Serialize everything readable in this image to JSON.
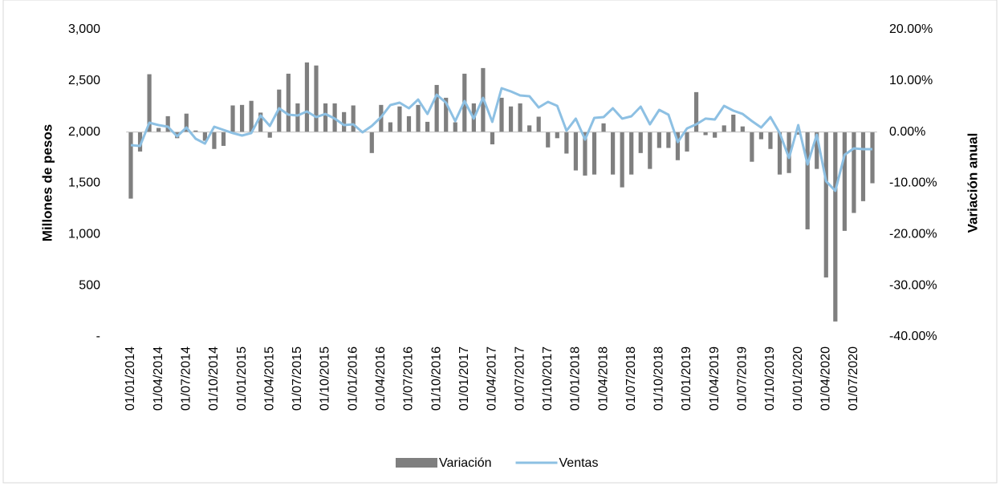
{
  "chart_data": {
    "type": "bar-line",
    "categories": [
      "01/01/2014",
      null,
      null,
      "01/04/2014",
      null,
      null,
      "01/07/2014",
      null,
      null,
      "01/10/2014",
      null,
      null,
      "01/01/2015",
      null,
      null,
      "01/04/2015",
      null,
      null,
      "01/07/2015",
      null,
      null,
      "01/10/2015",
      null,
      null,
      "01/01/2016",
      null,
      null,
      "01/04/2016",
      null,
      null,
      "01/07/2016",
      null,
      null,
      "01/10/2016",
      null,
      null,
      "01/01/2017",
      null,
      null,
      "01/04/2017",
      null,
      null,
      "01/07/2017",
      null,
      null,
      "01/10/2017",
      null,
      null,
      "01/01/2018",
      null,
      null,
      "01/04/2018",
      null,
      null,
      "01/07/2018",
      null,
      null,
      "01/10/2018",
      null,
      null,
      "01/01/2019",
      null,
      null,
      "01/04/2019",
      null,
      null,
      "01/07/2019",
      null,
      null,
      "01/10/2019",
      null,
      null,
      "01/01/2020",
      null,
      null,
      "01/04/2020",
      null,
      null,
      "01/07/2020",
      null,
      null
    ],
    "series": [
      {
        "name": "Variación",
        "kind": "bar",
        "axis": "y2",
        "color": "#7f7f7f",
        "values": [
          -13,
          -3.8,
          11.3,
          0.8,
          3.1,
          -1.2,
          3.6,
          0.3,
          -1.7,
          -3.3,
          -2.7,
          5.2,
          5.3,
          6.1,
          3.8,
          -1.1,
          8.3,
          11.4,
          5.6,
          13.6,
          13,
          5.6,
          5.6,
          3.9,
          5.2,
          0,
          -4.1,
          5.3,
          1.9,
          5,
          3.1,
          5.3,
          2,
          9.2,
          6.7,
          1.9,
          11.4,
          5.6,
          12.5,
          -2.4,
          6.7,
          5,
          5.6,
          1.3,
          3,
          -3,
          -1.2,
          -4.2,
          -7.5,
          -8.5,
          -8.3,
          1.7,
          -8.3,
          -10.8,
          -8.3,
          -4.1,
          -7.2,
          -3.1,
          -3.1,
          -5.5,
          -3.8,
          7.8,
          -0.6,
          -1.1,
          1.3,
          3.4,
          1.1,
          -5.8,
          -1.4,
          -3.3,
          -8.3,
          -8,
          -0.5,
          -19,
          -7.2,
          -28.4,
          -37,
          -19.3,
          -15.8,
          -13.5,
          -10
        ]
      },
      {
        "name": "Ventas",
        "kind": "line",
        "axis": "y",
        "color": "#8dc0e3",
        "values": [
          1872,
          1864,
          2091,
          2068,
          2052,
          1958,
          2044,
          1935,
          1888,
          2052,
          2021,
          1990,
          1966,
          1990,
          2162,
          2060,
          2232,
          2170,
          2162,
          2201,
          2146,
          2177,
          2131,
          2068,
          2076,
          1997,
          2060,
          2146,
          2264,
          2287,
          2232,
          2318,
          2177,
          2365,
          2287,
          2107,
          2303,
          2131,
          2334,
          2099,
          2428,
          2397,
          2358,
          2350,
          2240,
          2295,
          2256,
          2013,
          2131,
          1927,
          2138,
          2146,
          2232,
          2131,
          2154,
          2248,
          2076,
          2217,
          2170,
          1903,
          2036,
          2076,
          2131,
          2123,
          2256,
          2209,
          2177,
          2107,
          2044,
          2146,
          1990,
          1747,
          2068,
          1684,
          1974,
          1520,
          1426,
          1778,
          1841,
          1833,
          1833
        ]
      }
    ],
    "y_label": "Millones de pesos",
    "y2_label": "Variación anual",
    "ylim": [
      0,
      3000
    ],
    "yticks": [
      {
        "value": 0,
        "label": "-"
      },
      500,
      {
        "value": 1000,
        "label": "1,000"
      },
      {
        "value": 1500,
        "label": "1,500"
      },
      {
        "value": 2000,
        "label": "2,000"
      },
      {
        "value": 2500,
        "label": "2,500"
      },
      {
        "value": 3000,
        "label": "3,000"
      }
    ],
    "y2lim": [
      -40,
      20
    ],
    "y2ticks": [
      {
        "value": -40,
        "label": "-40.00%"
      },
      {
        "value": -30,
        "label": "-30.00%"
      },
      {
        "value": -20,
        "label": "-20.00%"
      },
      {
        "value": -10,
        "label": "-10.00%"
      },
      {
        "value": 0,
        "label": "0.00%"
      },
      {
        "value": 10,
        "label": "10.00%"
      },
      {
        "value": 20,
        "label": "20.00%"
      }
    ],
    "legend": "bottom"
  }
}
